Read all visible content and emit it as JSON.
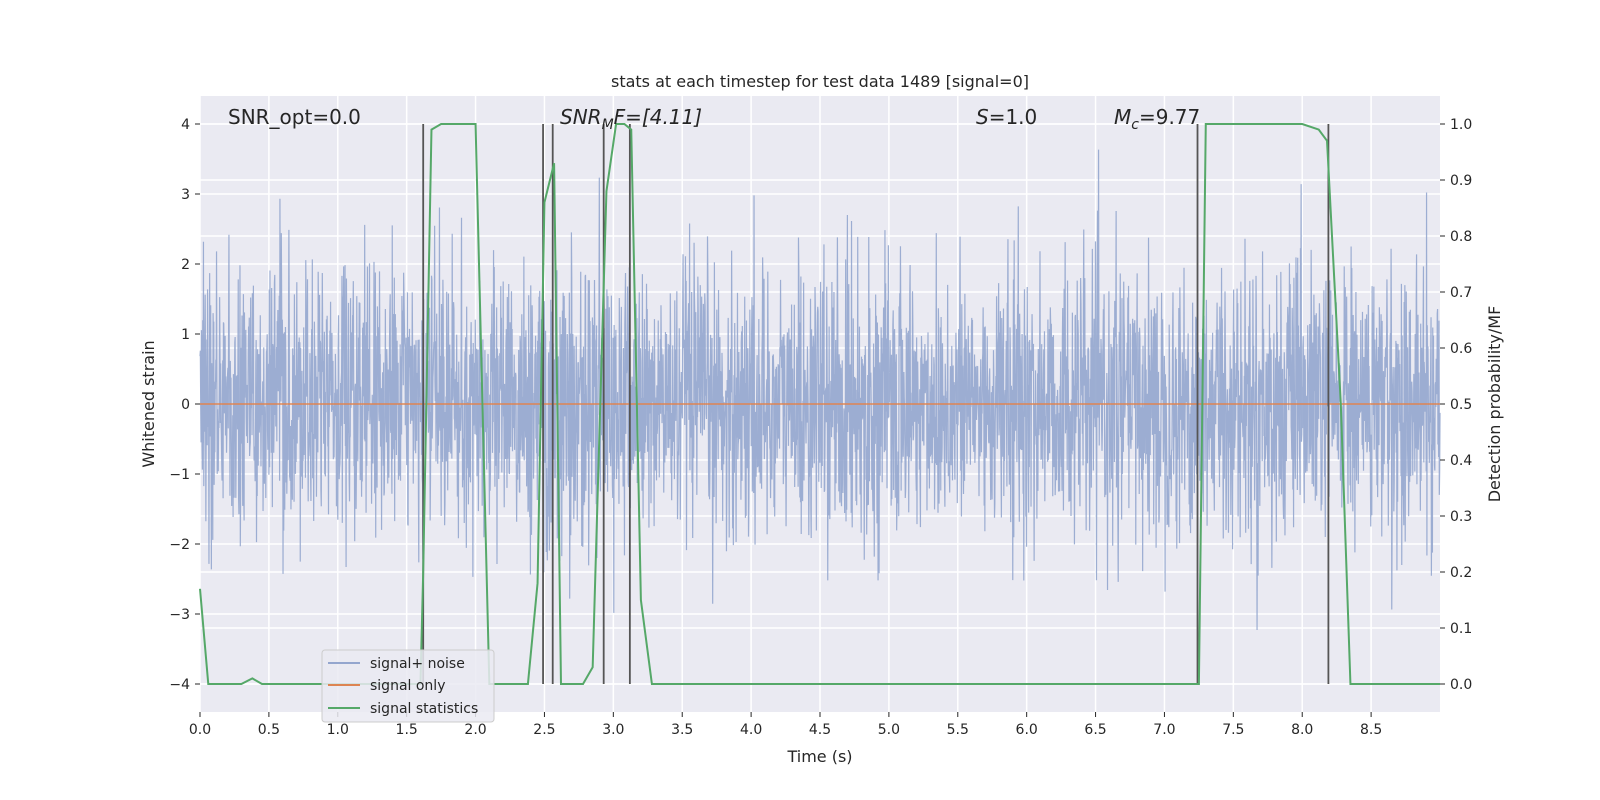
{
  "chart_data": {
    "type": "line",
    "title": "stats at each timestep for test data 1489 [signal=0]",
    "xlabel": "Time (s)",
    "ylabel": "Whitened strain",
    "y2label": "Detection probability/MF",
    "xlim": [
      0,
      9
    ],
    "ylim": [
      -4.4,
      4.4
    ],
    "y2lim": [
      -0.05,
      1.05
    ],
    "xticks": [
      "0.0",
      "0.5",
      "1.0",
      "1.5",
      "2.0",
      "2.5",
      "3.0",
      "3.5",
      "4.0",
      "4.5",
      "5.0",
      "5.5",
      "6.0",
      "6.5",
      "7.0",
      "7.5",
      "8.0",
      "8.5"
    ],
    "yticks": [
      "−4",
      "−3",
      "−2",
      "−1",
      "0",
      "1",
      "2",
      "3",
      "4"
    ],
    "y2ticks": [
      "0.0",
      "0.1",
      "0.2",
      "0.3",
      "0.4",
      "0.5",
      "0.6",
      "0.7",
      "0.8",
      "0.9",
      "1.0"
    ],
    "grid": true,
    "legend_position": "lower-left",
    "annotations": {
      "snr_opt": "SNR_opt=0.0",
      "snr_mf_main": "SNR",
      "snr_mf_sub": "M",
      "snr_mf_rest": "F=[4.11]",
      "s_main": "S",
      "s_rest": "=1.0",
      "mc_main": "M",
      "mc_sub": "c",
      "mc_rest": "=9.77"
    },
    "series": [
      {
        "name": "signal+ noise",
        "color": "#94a6ce",
        "description_values": "whitened noise, amplitude mostly within ±2.5 with peaks near ±4"
      },
      {
        "name": "signal only",
        "color": "#dd8452",
        "x": [
          0,
          9
        ],
        "y": [
          0,
          0
        ]
      },
      {
        "name": "signal statistics",
        "color": "#55a868",
        "axis": "right",
        "x": [
          0.0,
          0.06,
          0.1,
          0.3,
          0.38,
          0.45,
          0.5,
          1.0,
          1.5,
          1.55,
          1.6,
          1.62,
          1.68,
          1.75,
          1.9,
          2.0,
          2.1,
          2.3,
          2.38,
          2.45,
          2.5,
          2.57,
          2.62,
          2.68,
          2.78,
          2.85,
          2.95,
          3.02,
          3.08,
          3.13,
          3.2,
          3.28,
          3.5,
          4.0,
          4.5,
          5.0,
          5.5,
          6.0,
          6.5,
          7.0,
          7.2,
          7.25,
          7.3,
          7.5,
          8.0,
          8.12,
          8.18,
          8.28,
          8.35,
          9.0
        ],
        "y": [
          0.17,
          0.0,
          0.0,
          0.0,
          0.01,
          0.0,
          0.0,
          0.0,
          0.0,
          0.0,
          0.0,
          0.2,
          0.99,
          1.0,
          1.0,
          1.0,
          0.0,
          0.0,
          0.0,
          0.18,
          0.86,
          0.93,
          0.0,
          0.0,
          0.0,
          0.03,
          0.88,
          1.0,
          1.0,
          0.99,
          0.15,
          0.0,
          0.0,
          0.0,
          0.0,
          0.0,
          0.0,
          0.0,
          0.0,
          0.0,
          0.0,
          0.0,
          1.0,
          1.0,
          1.0,
          0.99,
          0.97,
          0.5,
          0.0,
          0.0
        ]
      }
    ],
    "vlines_x": [
      1.62,
      2.49,
      2.56,
      2.93,
      3.12,
      7.24,
      8.19
    ]
  },
  "colors": {
    "background": "#eaeaf2",
    "grid": "#ffffff",
    "vline": "#555555"
  }
}
